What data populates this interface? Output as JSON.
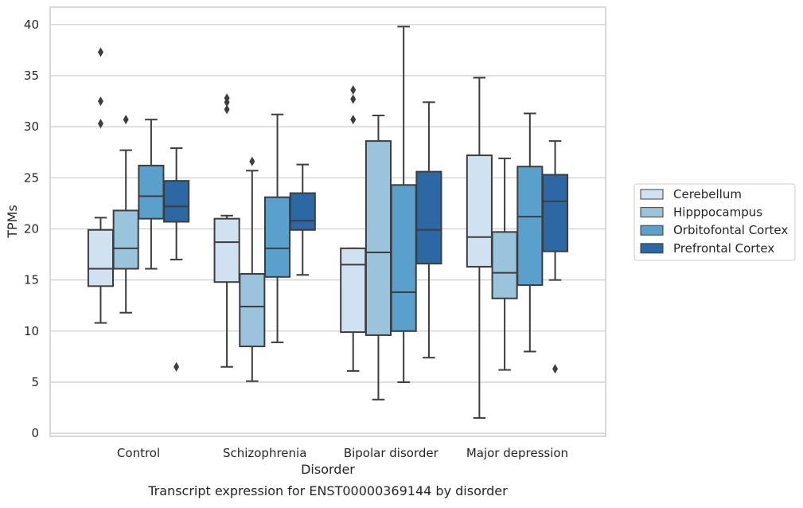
{
  "caption": "Transcript expression for ENST00000369144 by disorder",
  "chart_data": {
    "type": "box",
    "title": "",
    "xlabel": "Disorder",
    "ylabel": "TPMs",
    "ylim": [
      -0.3,
      41.7
    ],
    "yticks": [
      0,
      5,
      10,
      15,
      20,
      25,
      30,
      35,
      40
    ],
    "grid": "horizontal",
    "legend_position": "right",
    "categories": [
      "Control",
      "Schizophrenia",
      "Bipolar disorder",
      "Major depression"
    ],
    "series": [
      {
        "name": "Cerebellum",
        "color": "#d0e1f2",
        "boxes": [
          {
            "whislo": 10.8,
            "q1": 14.4,
            "med": 16.1,
            "q3": 19.9,
            "whishi": 21.1,
            "fliers": [
              37.3,
              32.5,
              30.3
            ]
          },
          {
            "whislo": 6.5,
            "q1": 14.8,
            "med": 18.7,
            "q3": 21.0,
            "whishi": 21.3,
            "fliers": [
              32.8,
              32.4,
              31.7
            ]
          },
          {
            "whislo": 6.1,
            "q1": 9.9,
            "med": 16.5,
            "q3": 18.1,
            "whishi": 18.1,
            "fliers": [
              33.6,
              32.7,
              30.7
            ]
          },
          {
            "whislo": 1.5,
            "q1": 16.3,
            "med": 19.2,
            "q3": 27.2,
            "whishi": 34.8,
            "fliers": []
          }
        ]
      },
      {
        "name": "Hipppocampus",
        "color": "#9ac3dc",
        "boxes": [
          {
            "whislo": 11.8,
            "q1": 16.1,
            "med": 18.1,
            "q3": 21.8,
            "whishi": 27.7,
            "fliers": [
              30.7
            ]
          },
          {
            "whislo": 5.1,
            "q1": 8.5,
            "med": 12.4,
            "q3": 15.6,
            "whishi": 25.7,
            "fliers": [
              26.6
            ]
          },
          {
            "whislo": 3.3,
            "q1": 9.6,
            "med": 17.7,
            "q3": 28.6,
            "whishi": 31.1,
            "fliers": []
          },
          {
            "whislo": 6.2,
            "q1": 13.2,
            "med": 15.7,
            "q3": 19.7,
            "whishi": 26.9,
            "fliers": []
          }
        ]
      },
      {
        "name": "Orbitofontal Cortex",
        "color": "#5aa0cc",
        "boxes": [
          {
            "whislo": 16.1,
            "q1": 21.0,
            "med": 23.2,
            "q3": 26.2,
            "whishi": 30.7,
            "fliers": []
          },
          {
            "whislo": 8.9,
            "q1": 15.3,
            "med": 18.1,
            "q3": 23.1,
            "whishi": 31.2,
            "fliers": []
          },
          {
            "whislo": 5.0,
            "q1": 10.0,
            "med": 13.8,
            "q3": 24.3,
            "whishi": 39.8,
            "fliers": []
          },
          {
            "whislo": 8.0,
            "q1": 14.5,
            "med": 21.2,
            "q3": 26.1,
            "whishi": 31.3,
            "fliers": []
          }
        ]
      },
      {
        "name": "Prefrontal Cortex",
        "color": "#2c68a4",
        "boxes": [
          {
            "whislo": 17.0,
            "q1": 20.7,
            "med": 22.2,
            "q3": 24.7,
            "whishi": 27.9,
            "fliers": [
              6.5
            ]
          },
          {
            "whislo": 15.5,
            "q1": 19.9,
            "med": 20.8,
            "q3": 23.5,
            "whishi": 26.3,
            "fliers": []
          },
          {
            "whislo": 7.4,
            "q1": 16.6,
            "med": 19.9,
            "q3": 25.6,
            "whishi": 32.4,
            "fliers": []
          },
          {
            "whislo": 15.0,
            "q1": 17.8,
            "med": 22.7,
            "q3": 25.3,
            "whishi": 28.6,
            "fliers": [
              6.3
            ]
          }
        ]
      }
    ]
  }
}
